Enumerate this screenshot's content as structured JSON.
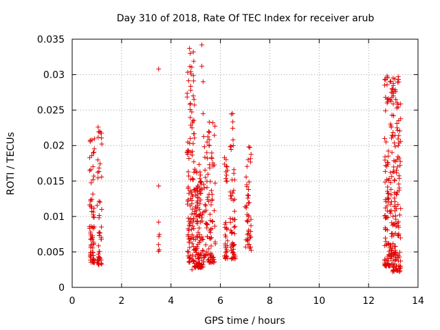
{
  "chart_data": {
    "type": "scatter",
    "title": "Day 310 of 2018, Rate Of TEC Index for receiver arub",
    "xlabel": "GPS time / hours",
    "ylabel": "ROTI / TECUs",
    "xlim": [
      0,
      14
    ],
    "ylim": [
      0,
      0.035
    ],
    "xticks": [
      "0",
      "2",
      "4",
      "6",
      "8",
      "10",
      "12",
      "14"
    ],
    "yticks": [
      "0",
      "0.005",
      "0.01",
      "0.015",
      "0.02",
      "0.025",
      "0.03",
      "0.035"
    ],
    "grid": true,
    "marker": "+",
    "color": "#e00000",
    "clusters": [
      {
        "x_from": 0.7,
        "x_to": 0.9,
        "y_from": 0.0035,
        "y_to": 0.021,
        "count": 70
      },
      {
        "x_from": 1.0,
        "x_to": 1.2,
        "y_from": 0.0032,
        "y_to": 0.0225,
        "count": 45
      },
      {
        "x_from": 3.45,
        "x_to": 3.55,
        "y_from": 0.0048,
        "y_to": 0.0095,
        "count": 4
      },
      {
        "x_from": 4.65,
        "x_to": 4.95,
        "y_from": 0.0035,
        "y_to": 0.0335,
        "count": 110
      },
      {
        "x_from": 4.95,
        "x_to": 5.3,
        "y_from": 0.0028,
        "y_to": 0.0175,
        "count": 120
      },
      {
        "x_from": 5.3,
        "x_to": 5.8,
        "y_from": 0.0035,
        "y_to": 0.0235,
        "count": 100
      },
      {
        "x_from": 6.15,
        "x_to": 6.3,
        "y_from": 0.004,
        "y_to": 0.0188,
        "count": 35
      },
      {
        "x_from": 6.4,
        "x_to": 6.6,
        "y_from": 0.004,
        "y_to": 0.0245,
        "count": 55
      },
      {
        "x_from": 7.0,
        "x_to": 7.25,
        "y_from": 0.0052,
        "y_to": 0.02,
        "count": 45
      },
      {
        "x_from": 12.65,
        "x_to": 12.95,
        "y_from": 0.003,
        "y_to": 0.0298,
        "count": 120
      },
      {
        "x_from": 12.95,
        "x_to": 13.3,
        "y_from": 0.0022,
        "y_to": 0.0298,
        "count": 130
      }
    ],
    "points": [
      [
        3.5,
        0.0308
      ],
      [
        3.5,
        0.0143
      ],
      [
        3.5,
        0.0092
      ],
      [
        3.5,
        0.0051
      ],
      [
        5.25,
        0.0342
      ],
      [
        4.75,
        0.0337
      ],
      [
        4.78,
        0.033
      ],
      [
        5.25,
        0.0312
      ],
      [
        5.3,
        0.029
      ],
      [
        4.8,
        0.0278
      ],
      [
        4.9,
        0.027
      ],
      [
        5.3,
        0.0245
      ],
      [
        5.55,
        0.0233
      ],
      [
        4.7,
        0.0163
      ],
      [
        6.5,
        0.0245
      ],
      [
        7.15,
        0.0198
      ],
      [
        1.05,
        0.0226
      ],
      [
        1.12,
        0.022
      ],
      [
        0.8,
        0.0208
      ],
      [
        0.85,
        0.019
      ],
      [
        12.75,
        0.0298
      ],
      [
        13.2,
        0.0297
      ],
      [
        12.75,
        0.026
      ],
      [
        13.1,
        0.0265
      ],
      [
        13.0,
        0.027
      ],
      [
        12.65,
        0.021
      ],
      [
        13.15,
        0.0225
      ],
      [
        13.2,
        0.02
      ],
      [
        12.8,
        0.0185
      ],
      [
        13.15,
        0.018
      ],
      [
        4.85,
        0.0225
      ],
      [
        4.78,
        0.021
      ],
      [
        5.55,
        0.02
      ],
      [
        5.45,
        0.019
      ],
      [
        4.85,
        0.0025
      ],
      [
        5.1,
        0.0028
      ],
      [
        13.25,
        0.0022
      ],
      [
        13.0,
        0.0028
      ]
    ]
  }
}
